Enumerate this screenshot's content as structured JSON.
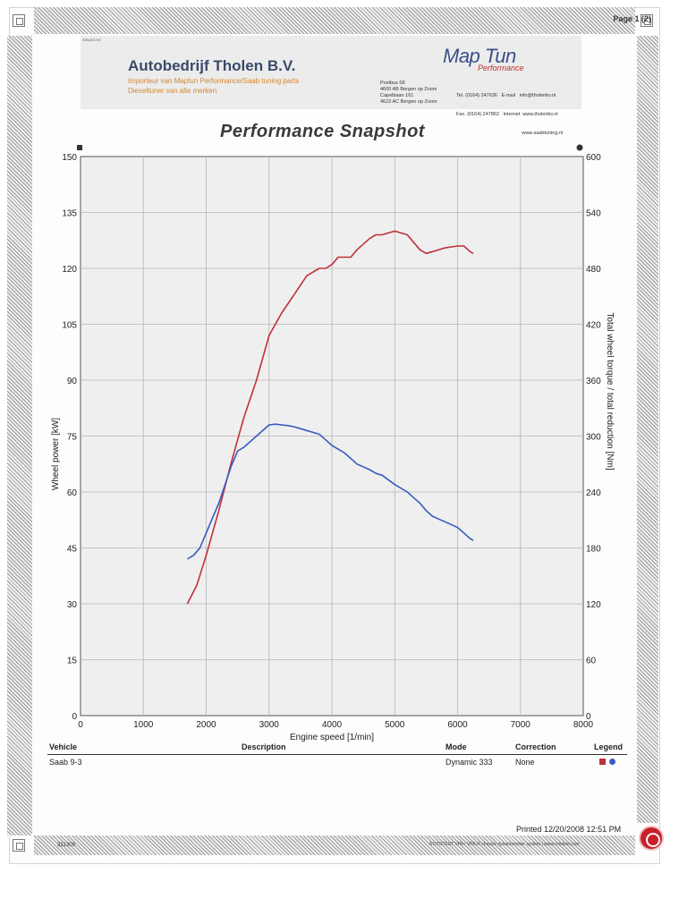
{
  "header": {
    "page_label": "Page 1 (2)",
    "issue_code": "ISSUED BY",
    "company": "Autobedrijf Tholen B.V.",
    "tagline1": "Importeur van Maptun Performance/Saab tuning parts",
    "tagline2": "Dieseltuner van alle merken",
    "logo_main": "Map Tun",
    "logo_sub": "Performance",
    "address": [
      "Postbus 68",
      "4600 AB Bergen op Zoom",
      "Capelbaan 161",
      "4623 AC Bergen op Zoom"
    ],
    "contact": [
      "Tel. (0164) 247636   E-mail   info@tholenbv.nl",
      "Fax. (0164) 247862   Internet  www.tholenbv.nl",
      "                                                www.saabtuning.nl"
    ]
  },
  "title": "Performance Snapshot",
  "chart_data": {
    "type": "line",
    "xlabel": "Engine speed [1/min]",
    "ylabel": "Wheel power [kW]",
    "y2label": "Total wheel torque / total reduction [Nm]",
    "xlim": [
      0,
      8000
    ],
    "ylim": [
      0,
      150
    ],
    "y2lim": [
      0,
      600
    ],
    "x_ticks": [
      "0",
      "1000",
      "2000",
      "3000",
      "4000",
      "5000",
      "6000",
      "7000",
      "8000"
    ],
    "y_ticks": [
      "0",
      "15",
      "30",
      "45",
      "60",
      "75",
      "90",
      "105",
      "120",
      "135",
      "150"
    ],
    "y2_ticks": [
      "0",
      "60",
      "120",
      "180",
      "240",
      "300",
      "360",
      "420",
      "480",
      "540",
      "600"
    ],
    "grid": true,
    "series": [
      {
        "color": "#c0303a",
        "axis": "left",
        "x": [
          1700,
          1850,
          2000,
          2200,
          2400,
          2600,
          2800,
          3000,
          3200,
          3400,
          3600,
          3800,
          3900,
          4000,
          4100,
          4200,
          4300,
          4400,
          4600,
          4700,
          4800,
          4900,
          5000,
          5100,
          5200,
          5300,
          5400,
          5500,
          5600,
          5800,
          6000,
          6100,
          6200,
          6250
        ],
        "values": [
          30,
          35,
          43,
          55,
          68,
          80,
          90,
          102,
          108,
          113,
          118,
          120,
          120,
          121,
          123,
          123,
          123,
          125,
          128,
          129,
          129,
          129.5,
          130,
          129.5,
          129,
          127,
          125,
          124,
          124.5,
          125.5,
          126,
          126,
          124.5,
          124
        ]
      },
      {
        "color": "#3a5ac0",
        "axis": "left",
        "x": [
          1700,
          1800,
          1900,
          2000,
          2100,
          2200,
          2300,
          2400,
          2500,
          2600,
          2800,
          3000,
          3100,
          3200,
          3300,
          3400,
          3500,
          3600,
          3800,
          3900,
          4000,
          4100,
          4200,
          4300,
          4400,
          4600,
          4700,
          4800,
          5000,
          5100,
          5200,
          5300,
          5400,
          5500,
          5600,
          5800,
          6000,
          6100,
          6200,
          6250
        ],
        "values": [
          42,
          43,
          45,
          49,
          53,
          57,
          62,
          67,
          71,
          72,
          75,
          78,
          78.2,
          78,
          77.8,
          77.5,
          77,
          76.5,
          75.5,
          74,
          72.5,
          71.5,
          70.5,
          69,
          67.5,
          66,
          65,
          64.5,
          62,
          61,
          60,
          58.5,
          57,
          55,
          53.5,
          52,
          50.5,
          49,
          47.5,
          47
        ]
      }
    ]
  },
  "table": {
    "headers": [
      "Vehicle",
      "Description",
      "Mode",
      "Correction",
      "Legend"
    ],
    "row": {
      "vehicle": "Saab 9-3",
      "description": "",
      "mode": "Dynamic 333",
      "correction": "None"
    }
  },
  "footer": {
    "printed": "Printed 12/20/2008 12:51 PM",
    "id": "331309",
    "system": "ROTOTEST VPA / VPA-R chassis dynamometer system | www.rototest.com"
  }
}
